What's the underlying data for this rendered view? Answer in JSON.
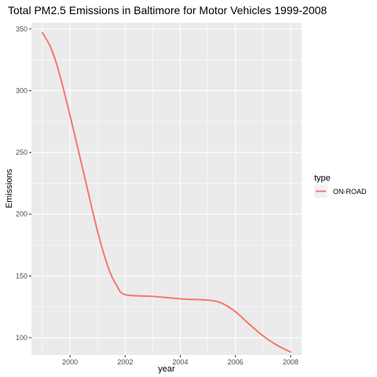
{
  "chart_data": {
    "type": "line",
    "title": "Total PM2.5 Emissions in Baltimore for Motor Vehicles 1999-2008",
    "xlabel": "year",
    "ylabel": "Emissions",
    "xlim": [
      1998.6,
      2008.4
    ],
    "ylim": [
      86,
      355
    ],
    "x_ticks": [
      2000,
      2002,
      2004,
      2006,
      2008
    ],
    "y_ticks": [
      100,
      150,
      200,
      250,
      300,
      350
    ],
    "x_tick_labels": [
      "2000",
      "2002",
      "2004",
      "2006",
      "2008"
    ],
    "y_tick_labels": [
      "100",
      "150",
      "200",
      "250",
      "300",
      "350"
    ],
    "grid": true,
    "legend": {
      "title": "type",
      "position": "right",
      "entries": [
        "ON-ROAD"
      ]
    },
    "series": [
      {
        "name": "ON-ROAD",
        "color": "#f8766d",
        "x": [
          1999.0,
          1999.3,
          1999.6,
          2000.0,
          2000.5,
          2001.0,
          2001.4,
          2001.7,
          2002.0,
          2003.0,
          2004.0,
          2005.0,
          2005.5,
          2006.0,
          2006.5,
          2007.0,
          2007.5,
          2008.0
        ],
        "y": [
          346.8,
          335.0,
          315.0,
          280.0,
          233.0,
          186.0,
          156.0,
          142.0,
          134.9,
          133.5,
          131.5,
          130.4,
          128.0,
          121.0,
          111.0,
          101.5,
          94.0,
          88.4
        ]
      }
    ],
    "panel_background": "#ebebeb",
    "grid_color": "#ffffff"
  }
}
